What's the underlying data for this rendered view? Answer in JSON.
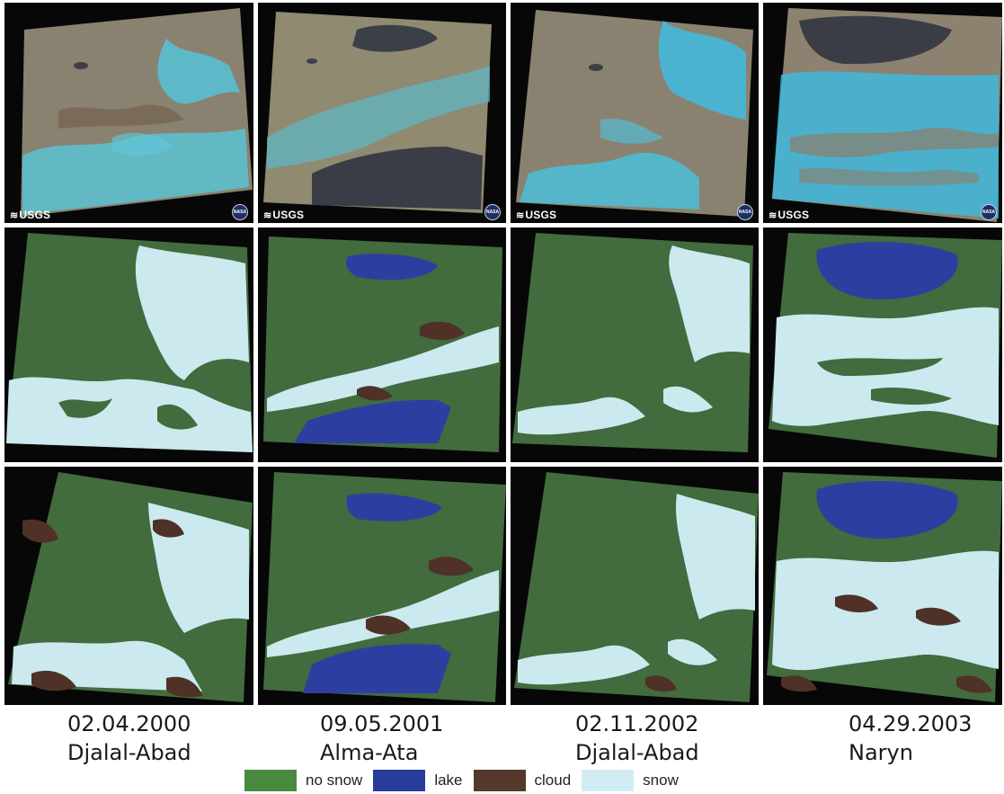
{
  "figure": {
    "watermark": "USGS",
    "columns": [
      {
        "date": "02.04.2000",
        "location": "Djalal-Abad"
      },
      {
        "date": "09.05.2001",
        "location": "Alma-Ata"
      },
      {
        "date": "02.11.2002",
        "location": "Djalal-Abad"
      },
      {
        "date": "04.29.2003",
        "location": "Naryn"
      }
    ]
  },
  "legend": {
    "items": [
      {
        "label": "no snow",
        "color": "#4a8a40"
      },
      {
        "label": "lake",
        "color": "#283c9c"
      },
      {
        "label": "cloud",
        "color": "#55392c"
      },
      {
        "label": "snow",
        "color": "#d2ecf5"
      }
    ]
  },
  "colors": {
    "background": "#070707",
    "satellite_ground": "#8c8370",
    "satellite_snow": "#4cc6d9",
    "map_ground": "#426b3e",
    "map_snow": "#cbe9ee",
    "map_lake": "#2d3ea0",
    "map_cloud": "#4f3127",
    "satellite_lake": "#3b3f48"
  }
}
